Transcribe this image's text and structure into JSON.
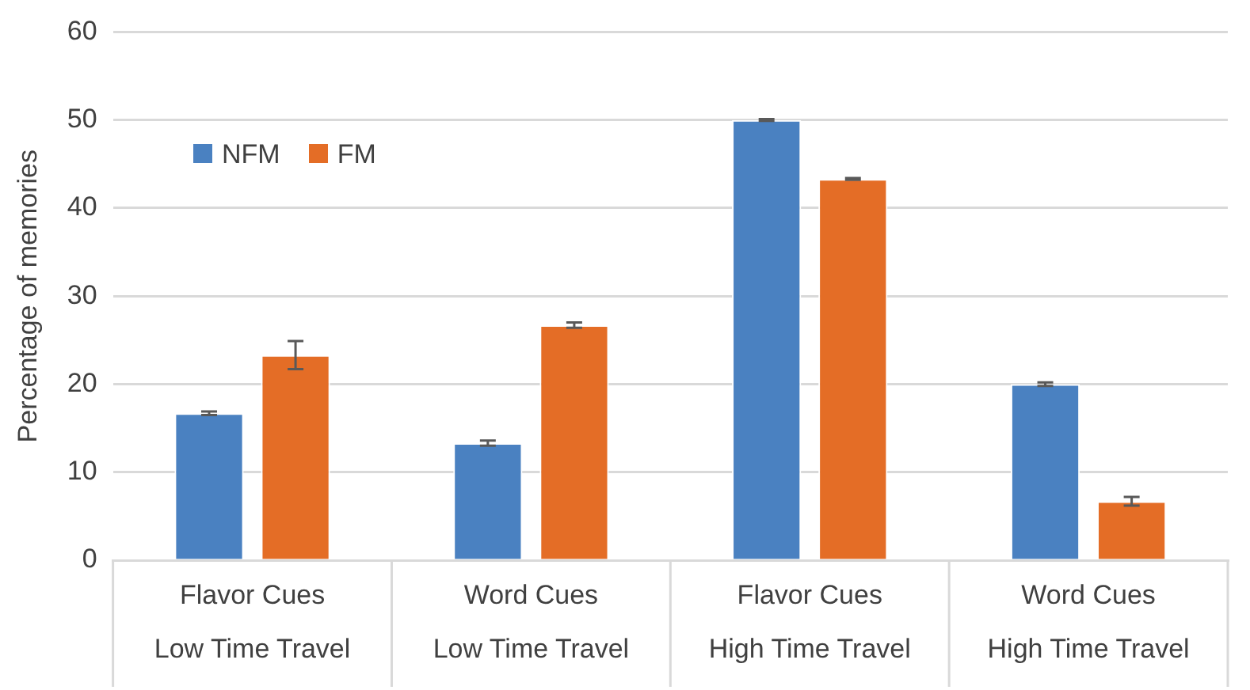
{
  "chart_data": {
    "type": "bar",
    "ylabel": "Percentage of memories",
    "categories": [
      "Flavor Cues\nLow Time Travel",
      "Word Cues\nLow Time Travel",
      "Flavor Cues\nHigh Time Travel",
      "Word Cues\nHigh Time Travel"
    ],
    "series": [
      {
        "name": "NFM",
        "color": "#4a81c1",
        "values": [
          16.7,
          13.3,
          50,
          20
        ],
        "errors": [
          0.2,
          0.3,
          0.1,
          0.2
        ]
      },
      {
        "name": "FM",
        "color": "#e46d26",
        "values": [
          23.3,
          26.7,
          43.3,
          6.7
        ],
        "errors": [
          1.6,
          0.3,
          0.1,
          0.5
        ]
      }
    ],
    "ylim": [
      0,
      60
    ],
    "yticks": [
      0,
      10,
      20,
      30,
      40,
      50,
      60
    ],
    "grid": "y",
    "legend": "top left"
  }
}
